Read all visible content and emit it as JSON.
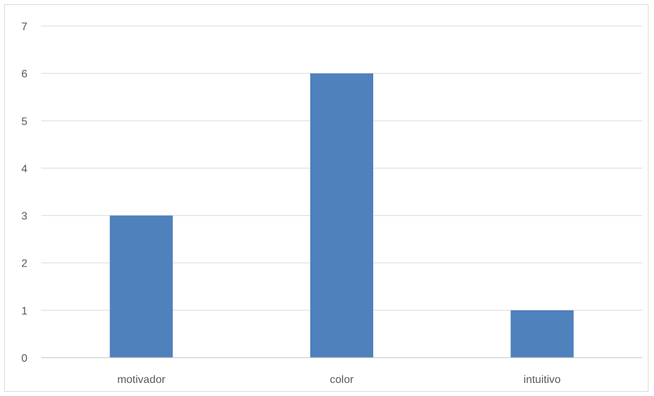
{
  "chart_data": {
    "type": "bar",
    "categories": [
      "motivador",
      "color",
      "intuitivo"
    ],
    "values": [
      3,
      6,
      1
    ],
    "title": "",
    "xlabel": "",
    "ylabel": "",
    "ylim": [
      0,
      7
    ],
    "yticks": [
      0,
      1,
      2,
      3,
      4,
      5,
      6,
      7
    ],
    "grid": true,
    "legend": "none",
    "colors": {
      "bar": "#4F81BD",
      "grid": "#d9d9d9",
      "axis": "#bfbfbf",
      "tick_text": "#595959",
      "border": "#d9d9d9"
    }
  }
}
